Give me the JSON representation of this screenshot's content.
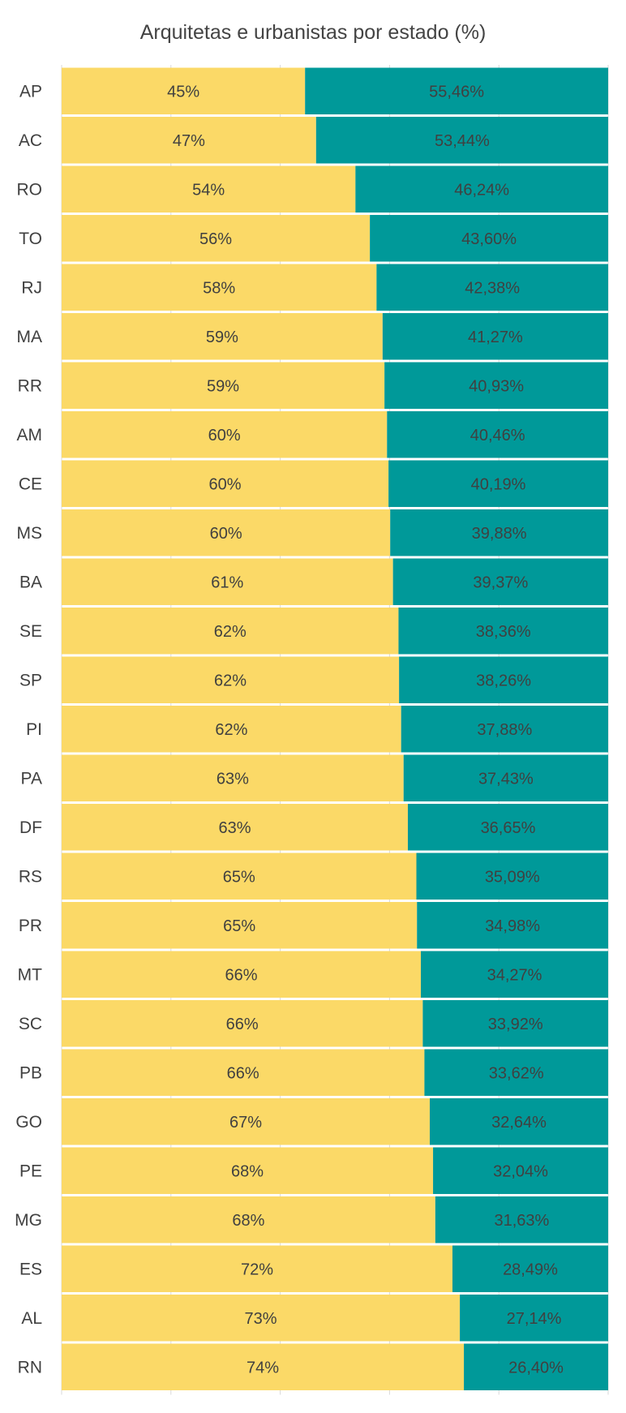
{
  "chart_data": {
    "type": "bar",
    "stacked": true,
    "percent_stacked": true,
    "orientation": "horizontal",
    "title": "Arquitetas e urbanistas por estado (%)",
    "categories": [
      "AP",
      "AC",
      "RO",
      "TO",
      "RJ",
      "MA",
      "RR",
      "AM",
      "CE",
      "MS",
      "BA",
      "SE",
      "SP",
      "PI",
      "PA",
      "DF",
      "RS",
      "PR",
      "MT",
      "SC",
      "PB",
      "GO",
      "PE",
      "MG",
      "ES",
      "AL",
      "RN"
    ],
    "series": [
      {
        "color": "#FBD967",
        "values": [
          44.54,
          46.56,
          53.76,
          56.4,
          57.62,
          58.73,
          59.07,
          59.54,
          59.81,
          60.12,
          60.63,
          61.64,
          61.74,
          62.12,
          62.57,
          63.35,
          64.91,
          65.02,
          65.73,
          66.08,
          66.38,
          67.36,
          67.96,
          68.37,
          71.51,
          72.86,
          73.6
        ],
        "labels": [
          "45%",
          "47%",
          "54%",
          "56%",
          "58%",
          "59%",
          "59%",
          "60%",
          "60%",
          "60%",
          "61%",
          "62%",
          "62%",
          "62%",
          "63%",
          "63%",
          "65%",
          "65%",
          "66%",
          "66%",
          "66%",
          "67%",
          "68%",
          "68%",
          "72%",
          "73%",
          "74%"
        ]
      },
      {
        "color": "#009999",
        "values": [
          55.46,
          53.44,
          46.24,
          43.6,
          42.38,
          41.27,
          40.93,
          40.46,
          40.19,
          39.88,
          39.37,
          38.36,
          38.26,
          37.88,
          37.43,
          36.65,
          35.09,
          34.98,
          34.27,
          33.92,
          33.62,
          32.64,
          32.04,
          31.63,
          28.49,
          27.14,
          26.4
        ],
        "labels": [
          "55,46%",
          "53,44%",
          "46,24%",
          "43,60%",
          "42,38%",
          "41,27%",
          "40,93%",
          "40,46%",
          "40,19%",
          "39,88%",
          "39,37%",
          "38,36%",
          "38,26%",
          "37,88%",
          "37,43%",
          "36,65%",
          "35,09%",
          "34,98%",
          "34,27%",
          "33,92%",
          "33,62%",
          "32,64%",
          "32,04%",
          "31,63%",
          "28,49%",
          "27,14%",
          "26,40%"
        ]
      }
    ],
    "xlim": [
      0,
      100
    ],
    "grid": true,
    "legend": "none"
  }
}
